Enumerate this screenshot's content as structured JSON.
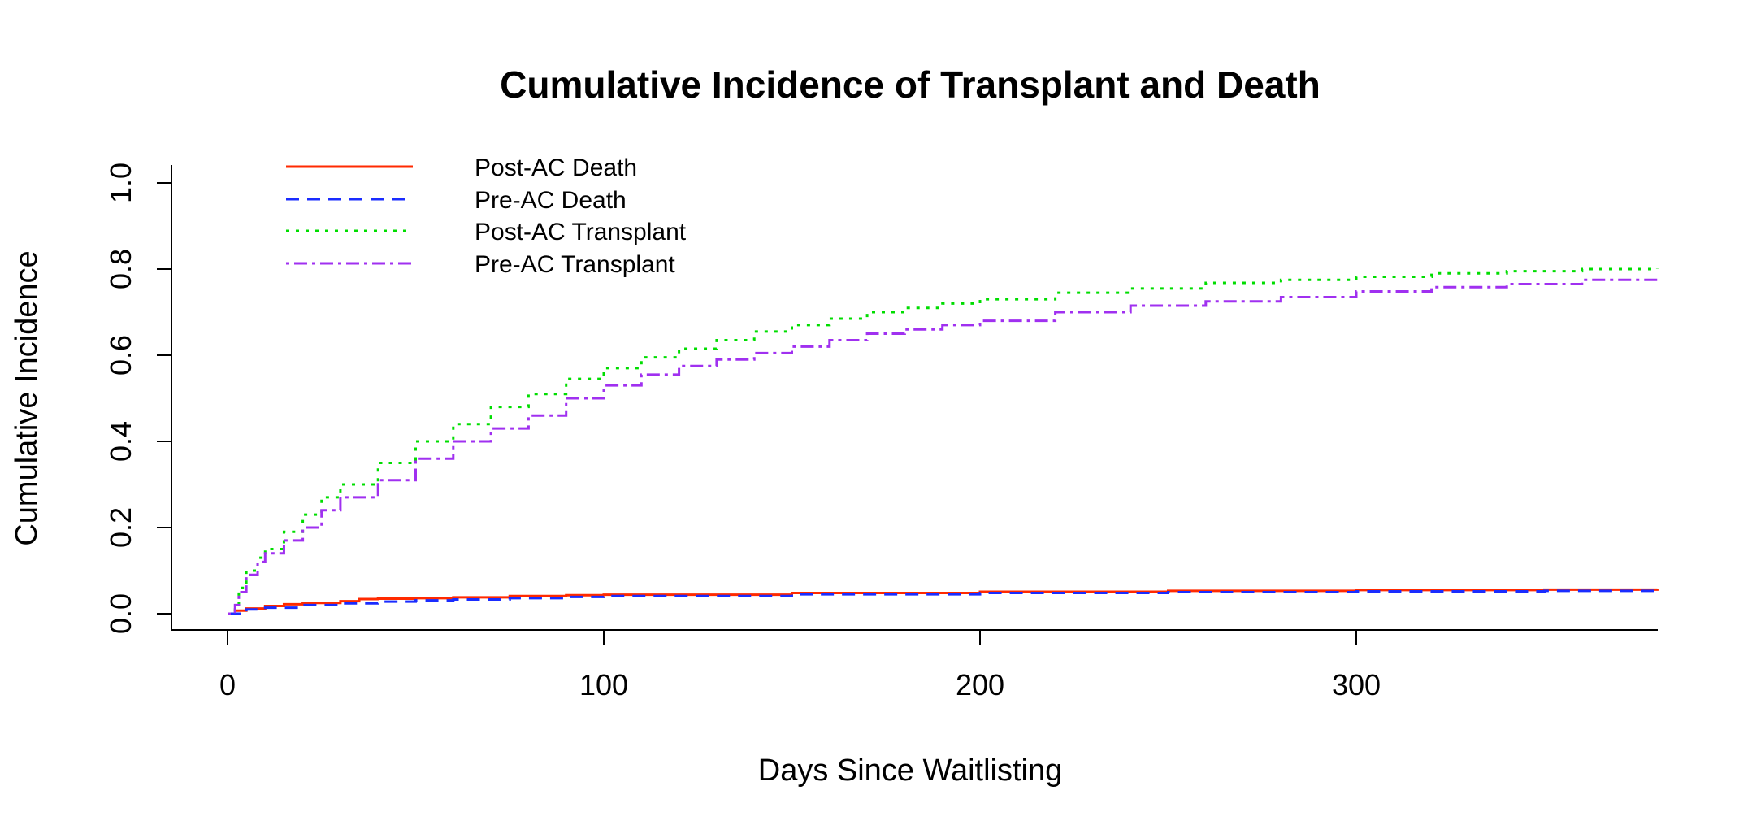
{
  "chart_data": {
    "type": "line",
    "title": "Cumulative Incidence of Transplant and Death",
    "xlabel": "Days Since Waitlisting",
    "ylabel": "Cumulative Incidence",
    "xlim": [
      0,
      380
    ],
    "ylim": [
      0,
      1.0
    ],
    "x_ticks": [
      0,
      100,
      200,
      300
    ],
    "y_ticks": [
      0.0,
      0.2,
      0.4,
      0.6,
      0.8,
      1.0
    ],
    "x_tick_labels": [
      "0",
      "100",
      "200",
      "300"
    ],
    "y_tick_labels": [
      "0.0",
      "0.2",
      "0.4",
      "0.6",
      "0.8",
      "1.0"
    ],
    "grid": false,
    "legend_position": "top-left",
    "series": [
      {
        "name": "Post-AC Death",
        "color": "#ff2a00",
        "dash": "solid",
        "x": [
          0,
          2,
          5,
          10,
          15,
          20,
          30,
          35,
          40,
          50,
          60,
          75,
          90,
          100,
          150,
          200,
          250,
          300,
          350,
          380
        ],
        "y": [
          0.0,
          0.007,
          0.012,
          0.018,
          0.022,
          0.025,
          0.029,
          0.034,
          0.035,
          0.036,
          0.038,
          0.041,
          0.043,
          0.044,
          0.048,
          0.051,
          0.053,
          0.055,
          0.056,
          0.057
        ]
      },
      {
        "name": "Pre-AC Death",
        "color": "#1a2cff",
        "dash": "dashed",
        "x": [
          0,
          5,
          10,
          20,
          30,
          40,
          50,
          60,
          75,
          90,
          100,
          150,
          200,
          250,
          300,
          350,
          380
        ],
        "y": [
          0.0,
          0.01,
          0.014,
          0.02,
          0.024,
          0.028,
          0.031,
          0.033,
          0.036,
          0.039,
          0.041,
          0.045,
          0.048,
          0.05,
          0.052,
          0.053,
          0.054
        ]
      },
      {
        "name": "Post-AC Transplant",
        "color": "#00dd00",
        "dash": "dotted",
        "x": [
          0,
          2,
          3,
          5,
          8,
          10,
          15,
          20,
          25,
          30,
          40,
          50,
          60,
          70,
          80,
          90,
          100,
          110,
          120,
          130,
          140,
          150,
          160,
          170,
          180,
          190,
          200,
          220,
          240,
          260,
          280,
          300,
          320,
          340,
          360,
          380
        ],
        "y": [
          0.0,
          0.02,
          0.06,
          0.1,
          0.13,
          0.15,
          0.19,
          0.23,
          0.27,
          0.3,
          0.35,
          0.4,
          0.44,
          0.48,
          0.51,
          0.545,
          0.57,
          0.595,
          0.615,
          0.635,
          0.655,
          0.67,
          0.685,
          0.7,
          0.71,
          0.72,
          0.73,
          0.745,
          0.755,
          0.768,
          0.775,
          0.782,
          0.79,
          0.795,
          0.8,
          0.802
        ]
      },
      {
        "name": "Pre-AC Transplant",
        "color": "#a030f0",
        "dash": "dashdot",
        "x": [
          0,
          2,
          3,
          5,
          8,
          10,
          15,
          20,
          25,
          30,
          40,
          50,
          60,
          70,
          80,
          90,
          100,
          110,
          120,
          130,
          140,
          150,
          160,
          170,
          180,
          190,
          200,
          220,
          240,
          260,
          280,
          300,
          320,
          340,
          360,
          380
        ],
        "y": [
          0.0,
          0.02,
          0.05,
          0.09,
          0.12,
          0.14,
          0.17,
          0.2,
          0.24,
          0.27,
          0.31,
          0.36,
          0.4,
          0.43,
          0.46,
          0.5,
          0.53,
          0.555,
          0.575,
          0.59,
          0.605,
          0.62,
          0.635,
          0.65,
          0.66,
          0.67,
          0.68,
          0.7,
          0.715,
          0.725,
          0.735,
          0.748,
          0.758,
          0.765,
          0.775,
          0.782
        ]
      }
    ]
  }
}
